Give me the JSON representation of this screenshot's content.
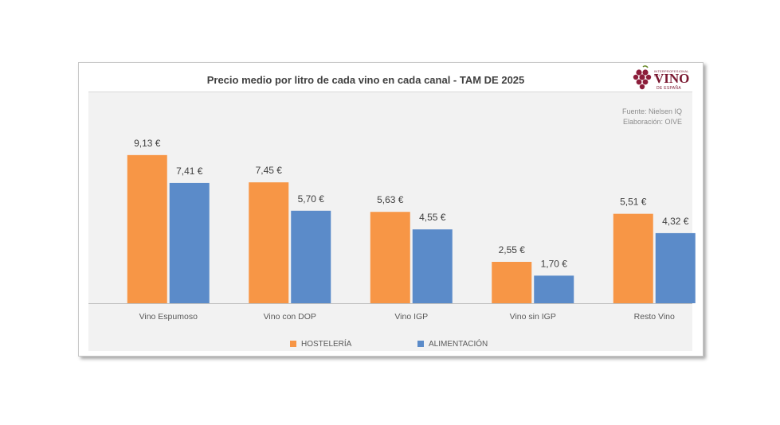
{
  "chart_data": {
    "type": "bar",
    "title": "Precio medio por litro de cada  vino en cada  canal  - TAM DE 2025",
    "categories": [
      "Vino Espumoso",
      "Vino con DOP",
      "Vino IGP",
      "Vino sin IGP",
      "Resto Vino"
    ],
    "series": [
      {
        "name": "HOSTELERÍA",
        "color": "#f79646",
        "values": [
          9.13,
          7.45,
          5.63,
          2.55,
          5.51
        ],
        "labels": [
          "9,13 €",
          "7,45 €",
          "5,63 €",
          "2,55 €",
          "5,51 €"
        ]
      },
      {
        "name": "ALIMENTACIÓN",
        "color": "#5b8bc9",
        "values": [
          7.41,
          5.7,
          4.55,
          1.7,
          4.32
        ],
        "labels": [
          "7,41 €",
          "5,70 €",
          "4,55 €",
          "1,70 €",
          "4,32 €"
        ]
      }
    ],
    "ylim": [
      0,
      10.3
    ],
    "grid": false,
    "legend": "bottom",
    "xlabel": "",
    "ylabel": ""
  },
  "source": {
    "line1": "Fuente: Nielsen IQ",
    "line2": "Elaboración: OIVE"
  },
  "logo": {
    "small": "INTERPROFESIONAL DEL",
    "main": "VINO",
    "sub": "DE ESPAÑA",
    "color": "#7a1730"
  }
}
